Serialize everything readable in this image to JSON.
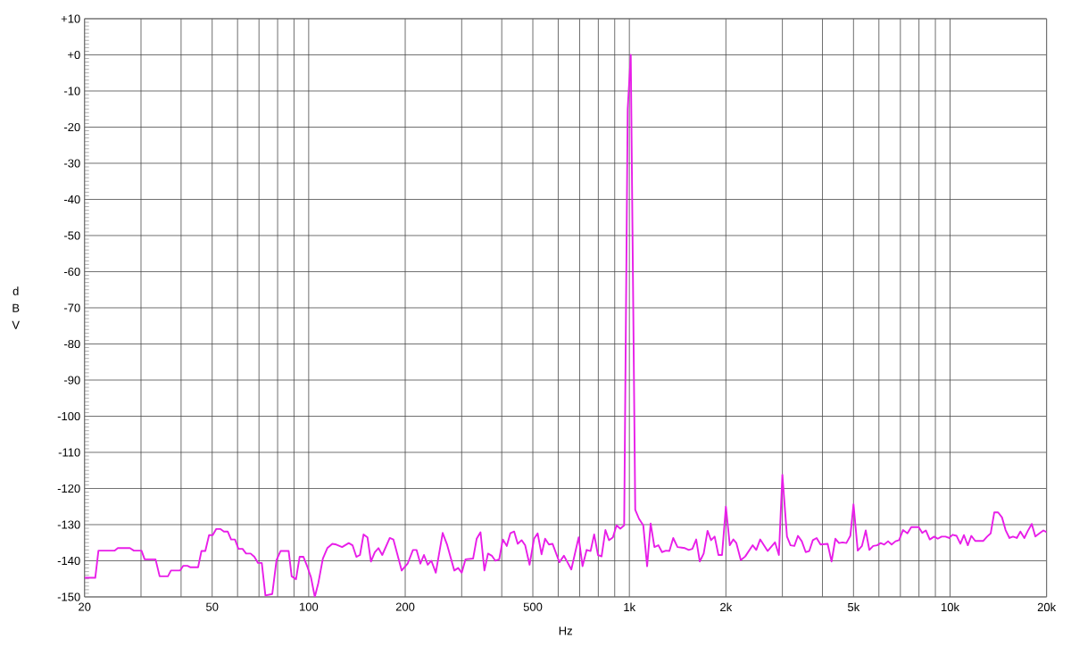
{
  "chart_data": {
    "type": "line",
    "xlabel": "Hz",
    "ylabel": "dBV",
    "color": "#e81ee8",
    "log": "x",
    "grid": true,
    "xlim": [
      20,
      20000
    ],
    "ylim": [
      -150,
      10
    ],
    "xticks": [
      20,
      {
        "value": 30,
        "label": null
      },
      {
        "value": 40,
        "label": null
      },
      50,
      {
        "value": 60,
        "label": null
      },
      {
        "value": 70,
        "label": null
      },
      {
        "value": 80,
        "label": null
      },
      {
        "value": 90,
        "label": null
      },
      100,
      200,
      {
        "value": 300,
        "label": null
      },
      {
        "value": 400,
        "label": null
      },
      500,
      {
        "value": 600,
        "label": null
      },
      {
        "value": 700,
        "label": null
      },
      {
        "value": 800,
        "label": null
      },
      {
        "value": 900,
        "label": null
      },
      {
        "value": 1000,
        "label": "1k"
      },
      {
        "value": 2000,
        "label": "2k"
      },
      {
        "value": 3000,
        "label": null
      },
      {
        "value": 4000,
        "label": null
      },
      {
        "value": 5000,
        "label": "5k"
      },
      {
        "value": 6000,
        "label": null
      },
      {
        "value": 7000,
        "label": null
      },
      {
        "value": 8000,
        "label": null
      },
      {
        "value": 9000,
        "label": null
      },
      {
        "value": 10000,
        "label": "10k"
      },
      {
        "value": 20000,
        "label": "20k"
      }
    ],
    "yticks": [
      {
        "value": 10,
        "label": "+10"
      },
      {
        "value": 0,
        "label": "+0"
      },
      -10,
      -20,
      -30,
      -40,
      -50,
      -60,
      -70,
      -80,
      -90,
      -100,
      -110,
      -120,
      -130,
      -140,
      -150
    ],
    "x": [
      20,
      21.6,
      22.1,
      24.8,
      25.4,
      27.7,
      28.5,
      30.1,
      30.8,
      33.3,
      34.3,
      36.4,
      37.2,
      39.7,
      40.6,
      41.9,
      42.8,
      45.2,
      46.3,
      47.6,
      48.9,
      50.2,
      51.5,
      53,
      54.4,
      55.9,
      57.3,
      58.9,
      60.4,
      62.2,
      63.8,
      65.9,
      67.7,
      69.5,
      71.4,
      73.3,
      77,
      79.4,
      81.7,
      86.6,
      88.5,
      91.3,
      93.7,
      96.3,
      99,
      101.6,
      104.5,
      107.2,
      110.7,
      114.3,
      118.5,
      121.9,
      127.1,
      133.3,
      137,
      140.8,
      144.5,
      148.3,
      152.5,
      156.4,
      160.8,
      165,
      169.6,
      179,
      183.7,
      188.8,
      195,
      203.5,
      211.4,
      216.9,
      223,
      228.8,
      235.1,
      241.3,
      249.1,
      261.7,
      269.8,
      284.5,
      292.5,
      300.2,
      308.4,
      325.6,
      334.1,
      343.4,
      353.2,
      362.4,
      372.5,
      382.1,
      392.8,
      403.1,
      414.6,
      425.4,
      437.3,
      448.6,
      461.2,
      473.1,
      488.5,
      504.4,
      517.5,
      532.2,
      546,
      561.2,
      575.9,
      605.2,
      624.9,
      641.1,
      659.1,
      694.9,
      714.5,
      735.9,
      757,
      776.7,
      798.3,
      819,
      842,
      863.9,
      888.5,
      911.7,
      937.1,
      963.3,
      988,
      1010,
      1043,
      1072,
      1105,
      1136,
      1165,
      1197,
      1232,
      1264,
      1300,
      1333,
      1370,
      1413,
      1490,
      1532,
      1572,
      1616,
      1658,
      1705,
      1753,
      1798,
      1845,
      1896,
      1945,
      2000,
      2057,
      2110,
      2156,
      2226,
      2298,
      2424,
      2487,
      2558,
      2698,
      2845,
      2926,
      3000,
      3101,
      3181,
      3270,
      3355,
      3449,
      3547,
      3639,
      3734,
      3837,
      3945,
      4152,
      4271,
      4390,
      4504,
      4621,
      4750,
      4887,
      5000,
      5154,
      5312,
      5459,
      5602,
      5758,
      5922,
      6076,
      6233,
      6408,
      6574,
      6759,
      6934,
      7133,
      7365,
      7571,
      7985,
      8191,
      8403,
      8645,
      8926,
      9157,
      9414,
      9678,
      9928,
      10180,
      10480,
      10770,
      11050,
      11360,
      11650,
      11980,
      12700,
      13050,
      13390,
      13740,
      14120,
      14520,
      14900,
      15320,
      15710,
      16150,
      16570,
      17050,
      17490,
      17980,
      18450,
      18960,
      19550,
      20000
    ],
    "values": [
      -144.7,
      -144.7,
      -137.2,
      -137.2,
      -136.5,
      -136.5,
      -137.2,
      -137.2,
      -139.6,
      -139.6,
      -144.3,
      -144.3,
      -142.7,
      -142.7,
      -141.4,
      -141.4,
      -141.8,
      -141.8,
      -137.3,
      -137.3,
      -132.9,
      -132.9,
      -131.2,
      -131.2,
      -131.9,
      -131.9,
      -134.1,
      -134.1,
      -136.7,
      -136.7,
      -138,
      -138,
      -138.9,
      -140.6,
      -140.6,
      -149.6,
      -149.2,
      -139.8,
      -137.3,
      -137.3,
      -144.3,
      -145.1,
      -138.9,
      -138.9,
      -141.6,
      -144.5,
      -150,
      -146.1,
      -139.4,
      -136.5,
      -135.3,
      -135.5,
      -136.2,
      -135.1,
      -135.7,
      -138.9,
      -138.4,
      -132.7,
      -133.5,
      -140.2,
      -137.6,
      -136.5,
      -138.4,
      -133.7,
      -134.1,
      -138,
      -142.7,
      -140.8,
      -137,
      -137,
      -140.8,
      -138.4,
      -141.1,
      -140,
      -143.3,
      -132.3,
      -135.4,
      -142.7,
      -142,
      -143.3,
      -139.6,
      -139.4,
      -133.9,
      -132.1,
      -142.7,
      -138,
      -138.6,
      -140,
      -139.6,
      -134.1,
      -135.9,
      -132.4,
      -131.9,
      -135.3,
      -134.3,
      -135.7,
      -141.1,
      -133.9,
      -132.4,
      -138.2,
      -133.9,
      -135.5,
      -135.3,
      -140.4,
      -138.6,
      -140.4,
      -142.4,
      -133.5,
      -141.5,
      -137,
      -137.3,
      -132.7,
      -138.4,
      -138.8,
      -131.5,
      -134.3,
      -133.5,
      -130.2,
      -131.1,
      -130.2,
      -15,
      0,
      -125.9,
      -128.4,
      -130.2,
      -141.5,
      -129.7,
      -136.2,
      -135.7,
      -137.6,
      -137.2,
      -137.3,
      -133.7,
      -136.2,
      -136.5,
      -137,
      -136.7,
      -134.1,
      -140.2,
      -138,
      -131.7,
      -134.3,
      -133.3,
      -138.4,
      -138.4,
      -125,
      -135.7,
      -134.1,
      -135.1,
      -139.8,
      -138.8,
      -135.7,
      -137,
      -134.1,
      -137.3,
      -134.9,
      -138.4,
      -116.2,
      -133.3,
      -135.7,
      -135.9,
      -133.1,
      -134.6,
      -137.6,
      -137.3,
      -134.3,
      -133.7,
      -135.5,
      -135.3,
      -140.2,
      -133.9,
      -135.1,
      -134.9,
      -135.1,
      -133.1,
      -124.4,
      -137.2,
      -135.9,
      -131.6,
      -137,
      -135.9,
      -135.7,
      -135.1,
      -135.5,
      -134.6,
      -135.5,
      -134.6,
      -134.3,
      -131.5,
      -132.4,
      -130.7,
      -130.7,
      -132.3,
      -131.6,
      -134.1,
      -133.3,
      -133.9,
      -133.3,
      -133.3,
      -133.7,
      -132.8,
      -133.1,
      -135.3,
      -132.9,
      -135.7,
      -133.1,
      -134.5,
      -134.5,
      -133.3,
      -132.4,
      -126.6,
      -126.6,
      -128,
      -131.5,
      -133.7,
      -133.3,
      -133.7,
      -131.9,
      -133.7,
      -131.7,
      -129.8,
      -133.3,
      -132.5,
      -131.6,
      -132.1
    ]
  }
}
